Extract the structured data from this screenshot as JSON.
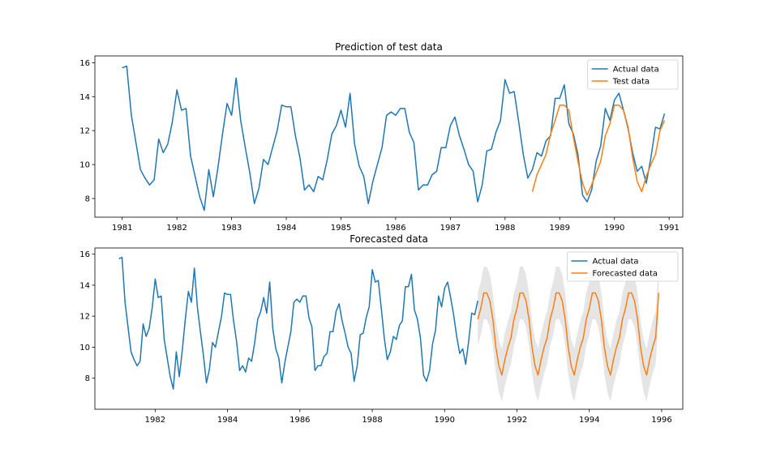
{
  "colors": {
    "actual": "#1f77b4",
    "predicted": "#ff7f0e",
    "band": "#d3d3d3"
  },
  "chart_data": [
    {
      "type": "line",
      "title": "Prediction of test data",
      "xlabel": "",
      "ylabel": "",
      "x_axis": "date",
      "xlim": [
        "1980-07-01",
        "1991-04-01"
      ],
      "ylim": [
        6.9,
        16.4
      ],
      "xticks": [
        "1981",
        "1982",
        "1983",
        "1984",
        "1985",
        "1986",
        "1987",
        "1988",
        "1989",
        "1990",
        "1991"
      ],
      "yticks": [
        "8",
        "10",
        "12",
        "14",
        "16"
      ],
      "grid": false,
      "legend_position": "upper right",
      "series": [
        {
          "name": "Actual data",
          "color_key": "actual",
          "start": "1981-01",
          "values": [
            15.7,
            15.8,
            12.9,
            11.3,
            9.7,
            9.2,
            8.8,
            9.1,
            11.5,
            10.7,
            11.2,
            12.5,
            14.4,
            13.2,
            13.3,
            10.5,
            9.3,
            8.1,
            7.3,
            9.7,
            8.1,
            9.8,
            11.8,
            13.6,
            12.9,
            15.1,
            12.6,
            11.0,
            9.5,
            7.7,
            8.6,
            10.3,
            10.0,
            11.0,
            12.0,
            13.5,
            13.4,
            13.4,
            11.7,
            10.4,
            8.5,
            8.8,
            8.4,
            9.3,
            9.1,
            10.3,
            11.8,
            12.3,
            13.2,
            12.2,
            14.2,
            11.2,
            9.9,
            9.3,
            7.7,
            9.0,
            10.0,
            11.0,
            12.9,
            13.1,
            12.9,
            13.3,
            13.3,
            11.9,
            11.3,
            8.5,
            8.8,
            8.8,
            9.4,
            9.6,
            11.0,
            11.0,
            12.3,
            12.8,
            11.7,
            10.9,
            10.0,
            9.6,
            7.8,
            8.8,
            10.8,
            10.9,
            11.9,
            12.6,
            15.0,
            14.2,
            14.3,
            12.5,
            10.6,
            9.2,
            9.7,
            10.7,
            10.5,
            11.4,
            11.7,
            13.9,
            13.9,
            14.7,
            12.4,
            11.8,
            10.6,
            8.2,
            7.8,
            8.5,
            10.2,
            11.1,
            13.3,
            12.6,
            13.8,
            14.2,
            13.2,
            12.1,
            10.7,
            9.6,
            9.9,
            8.9,
            10.4,
            12.2,
            12.1,
            13.0
          ]
        },
        {
          "name": "Test data",
          "color_key": "predicted",
          "start": "1988-07",
          "values": [
            8.4,
            9.4,
            10.0,
            10.6,
            11.8,
            12.6,
            13.5,
            13.5,
            13.2,
            11.6,
            10.2,
            8.9,
            8.2,
            8.8,
            9.5,
            10.2,
            11.7,
            12.4,
            13.5,
            13.5,
            13.2,
            12.2,
            10.4,
            9.0,
            8.4,
            9.3,
            10.0,
            10.6,
            12.0,
            12.6
          ]
        }
      ]
    },
    {
      "type": "line",
      "title": "Forecasted data",
      "xlabel": "",
      "ylabel": "",
      "x_axis": "date",
      "xlim": [
        "1980-05-01",
        "1996-08-01"
      ],
      "ylim": [
        6.0,
        16.4
      ],
      "xticks": [
        "1982",
        "1984",
        "1986",
        "1988",
        "1990",
        "1992",
        "1994",
        "1996"
      ],
      "yticks": [
        "8",
        "10",
        "12",
        "14",
        "16"
      ],
      "grid": false,
      "legend_position": "upper right",
      "series": [
        {
          "name": "Actual data",
          "color_key": "actual",
          "start": "1981-01",
          "values": [
            15.7,
            15.8,
            12.9,
            11.3,
            9.7,
            9.2,
            8.8,
            9.1,
            11.5,
            10.7,
            11.2,
            12.5,
            14.4,
            13.2,
            13.3,
            10.5,
            9.3,
            8.1,
            7.3,
            9.7,
            8.1,
            9.8,
            11.8,
            13.6,
            12.9,
            15.1,
            12.6,
            11.0,
            9.5,
            7.7,
            8.6,
            10.3,
            10.0,
            11.0,
            12.0,
            13.5,
            13.4,
            13.4,
            11.7,
            10.4,
            8.5,
            8.8,
            8.4,
            9.3,
            9.1,
            10.3,
            11.8,
            12.3,
            13.2,
            12.2,
            14.2,
            11.2,
            9.9,
            9.3,
            7.7,
            9.0,
            10.0,
            11.0,
            12.9,
            13.1,
            12.9,
            13.3,
            13.3,
            11.9,
            11.3,
            8.5,
            8.8,
            8.8,
            9.4,
            9.6,
            11.0,
            11.0,
            12.3,
            12.8,
            11.7,
            10.9,
            10.0,
            9.6,
            7.8,
            8.8,
            10.8,
            10.9,
            11.9,
            12.6,
            15.0,
            14.2,
            14.3,
            12.5,
            10.6,
            9.2,
            9.7,
            10.7,
            10.5,
            11.4,
            11.7,
            13.9,
            13.9,
            14.7,
            12.4,
            11.8,
            10.6,
            8.2,
            7.8,
            8.5,
            10.2,
            11.1,
            13.3,
            12.6,
            13.8,
            14.2,
            13.2,
            12.1,
            10.7,
            9.6,
            9.9,
            8.9,
            10.4,
            12.2,
            12.1,
            13.0
          ]
        },
        {
          "name": "Forecasted data",
          "color_key": "predicted",
          "start": "1990-12",
          "repeat_cycle": [
            11.8,
            12.5,
            13.5,
            13.5,
            13.0,
            11.8,
            10.0,
            8.8,
            8.2,
            9.2,
            10.0,
            10.6
          ],
          "repeat_count": 5,
          "final_value": 13.5,
          "band_halfwidth": 1.7
        }
      ]
    }
  ]
}
